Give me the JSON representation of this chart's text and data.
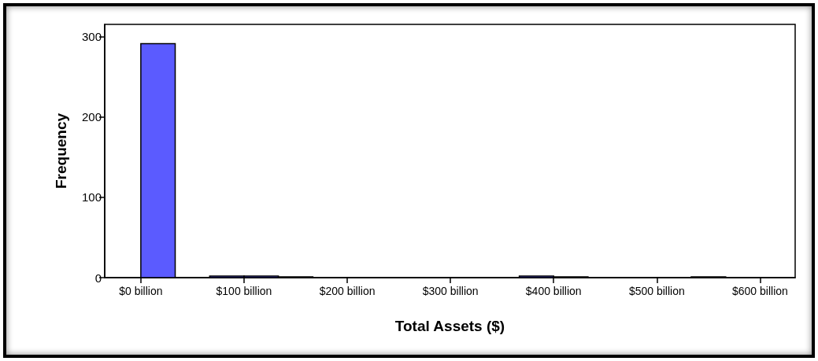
{
  "chart_data": {
    "type": "histogram",
    "xlabel": "Total Assets ($)",
    "ylabel": "Frequency",
    "bins": [
      0,
      33.3,
      66.7,
      100,
      133.3,
      166.7,
      200,
      233.3,
      266.7,
      300,
      333.3,
      366.7,
      400,
      433.3,
      466.7,
      500,
      533.3,
      566.7,
      600
    ],
    "values": [
      291,
      0,
      2,
      2,
      1,
      0,
      0,
      0,
      0,
      0,
      0,
      2,
      1,
      0,
      0,
      0,
      1,
      0
    ],
    "color": "#5b5bff",
    "xlim": [
      -35,
      634
    ],
    "xticks": [
      {
        "value": 0,
        "label": "$0 billion"
      },
      {
        "value": 100,
        "label": "$100 billion"
      },
      {
        "value": 200,
        "label": "$200 billion"
      },
      {
        "value": 300,
        "label": "$300 billion"
      },
      {
        "value": 400,
        "label": "$400 billion"
      },
      {
        "value": 500,
        "label": "$500 billion"
      },
      {
        "value": 600,
        "label": "$600 billion"
      }
    ],
    "ylim": [
      0,
      315
    ],
    "yticks": [
      0,
      100,
      200,
      300
    ],
    "grid": false
  }
}
